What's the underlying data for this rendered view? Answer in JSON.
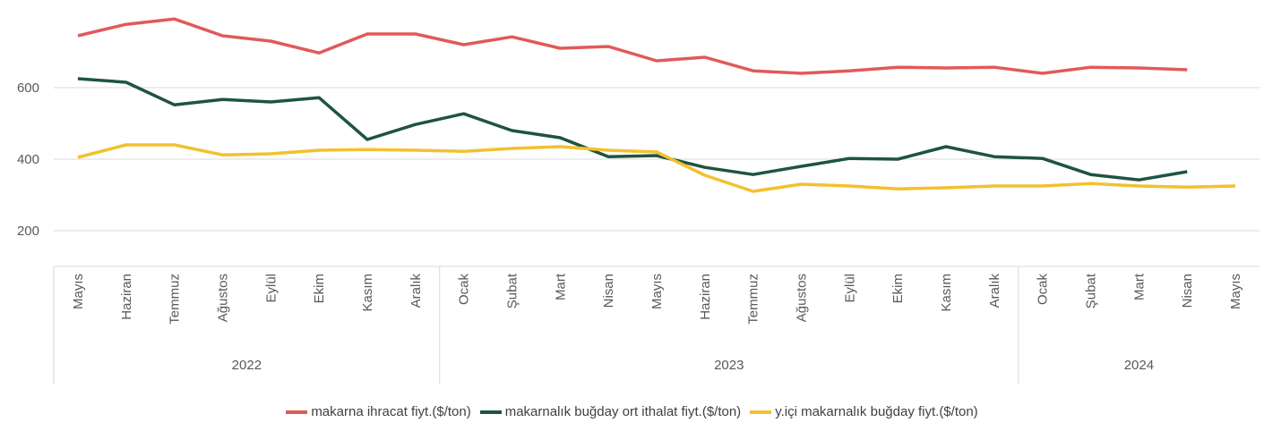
{
  "chart_data": {
    "type": "line",
    "categories": [
      "Mayıs",
      "Haziran",
      "Temmuz",
      "Ağustos",
      "Eylül",
      "Ekim",
      "Kasım",
      "Aralık",
      "Ocak",
      "Şubat",
      "Mart",
      "Nisan",
      "Mayıs",
      "Haziran",
      "Temmuz",
      "Ağustos",
      "Eylül",
      "Ekim",
      "Kasım",
      "Aralık",
      "Ocak",
      "Şubat",
      "Mart",
      "Nisan",
      "Mayıs"
    ],
    "groups": [
      {
        "label": "2022",
        "count": 8
      },
      {
        "label": "2023",
        "count": 12
      },
      {
        "label": "2024",
        "count": 5
      }
    ],
    "series": [
      {
        "name": "makarna ihracat fiyt.($/ton)",
        "color": "#e05a5a",
        "values": [
          745,
          777,
          792,
          745,
          730,
          697,
          750,
          750,
          720,
          742,
          710,
          715,
          675,
          685,
          647,
          640,
          647,
          657,
          655,
          657,
          640,
          657,
          655,
          650,
          null
        ]
      },
      {
        "name": "makarnalık buğday ort ithalat fiyt.($/ton)",
        "color": "#1e5441",
        "values": [
          625,
          615,
          552,
          567,
          560,
          572,
          455,
          497,
          527,
          480,
          460,
          407,
          410,
          377,
          357,
          380,
          402,
          400,
          435,
          407,
          402,
          357,
          342,
          365,
          null
        ]
      },
      {
        "name": "y.içi makarnalık buğday fiyt.($/ton)",
        "color": "#f2c12e",
        "values": [
          405,
          440,
          440,
          412,
          415,
          425,
          427,
          425,
          422,
          430,
          435,
          425,
          420,
          355,
          310,
          330,
          325,
          317,
          320,
          325,
          325,
          332,
          325,
          322,
          325
        ]
      }
    ],
    "ylim": [
      100,
      845
    ],
    "yticks": [
      200,
      400,
      600
    ],
    "grid": true,
    "legend": "bottom"
  }
}
